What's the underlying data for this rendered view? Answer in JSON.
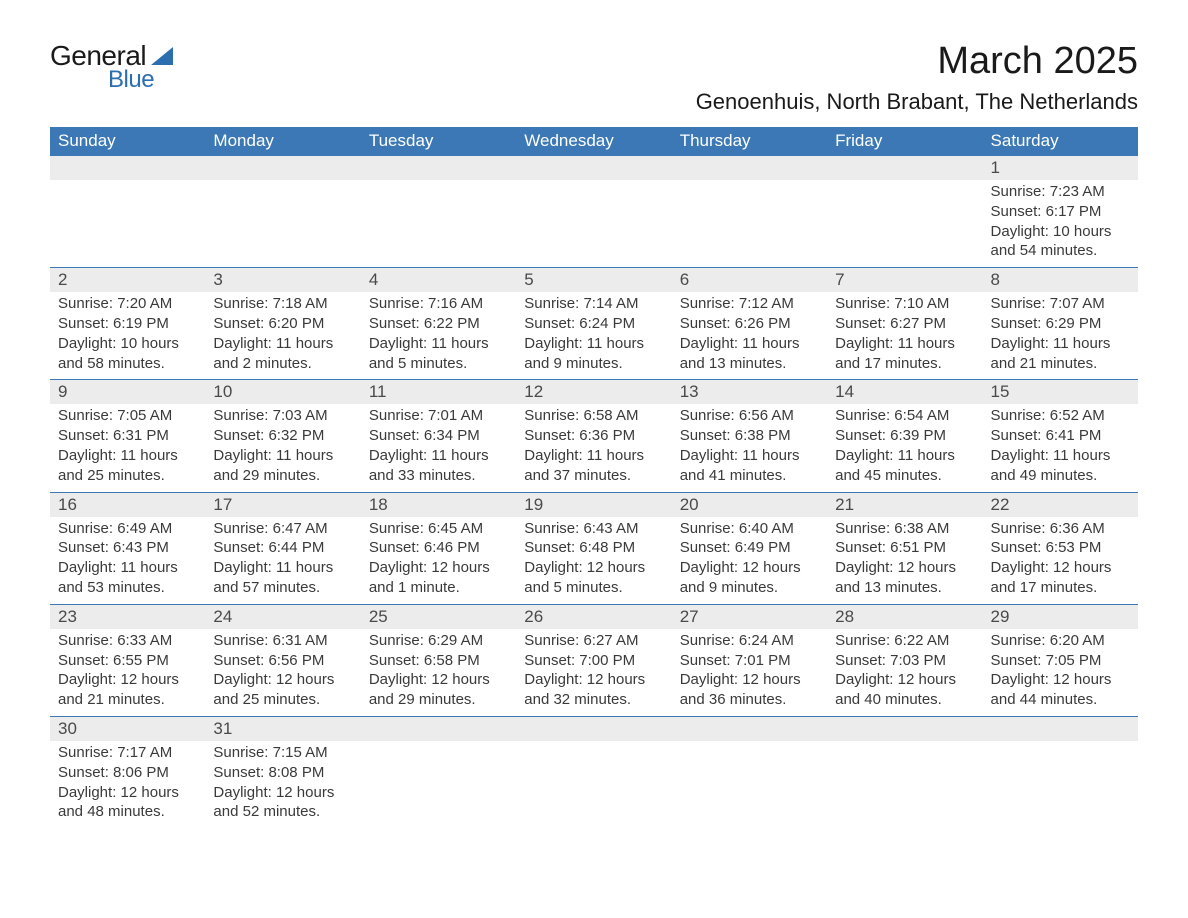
{
  "logo": {
    "text_general": "General",
    "text_blue": "Blue"
  },
  "header": {
    "title": "March 2025",
    "location": "Genoenhuis, North Brabant, The Netherlands"
  },
  "colors": {
    "header_bg": "#3b78b5",
    "header_text": "#ffffff",
    "daynum_bg": "#ececec",
    "row_border": "#3b78b5",
    "body_text": "#3a3a3a",
    "logo_blue": "#2c6fb0"
  },
  "day_headers": [
    "Sunday",
    "Monday",
    "Tuesday",
    "Wednesday",
    "Thursday",
    "Friday",
    "Saturday"
  ],
  "weeks": [
    [
      null,
      null,
      null,
      null,
      null,
      null,
      {
        "n": "1",
        "sunrise": "Sunrise: 7:23 AM",
        "sunset": "Sunset: 6:17 PM",
        "daylight": "Daylight: 10 hours and 54 minutes."
      }
    ],
    [
      {
        "n": "2",
        "sunrise": "Sunrise: 7:20 AM",
        "sunset": "Sunset: 6:19 PM",
        "daylight": "Daylight: 10 hours and 58 minutes."
      },
      {
        "n": "3",
        "sunrise": "Sunrise: 7:18 AM",
        "sunset": "Sunset: 6:20 PM",
        "daylight": "Daylight: 11 hours and 2 minutes."
      },
      {
        "n": "4",
        "sunrise": "Sunrise: 7:16 AM",
        "sunset": "Sunset: 6:22 PM",
        "daylight": "Daylight: 11 hours and 5 minutes."
      },
      {
        "n": "5",
        "sunrise": "Sunrise: 7:14 AM",
        "sunset": "Sunset: 6:24 PM",
        "daylight": "Daylight: 11 hours and 9 minutes."
      },
      {
        "n": "6",
        "sunrise": "Sunrise: 7:12 AM",
        "sunset": "Sunset: 6:26 PM",
        "daylight": "Daylight: 11 hours and 13 minutes."
      },
      {
        "n": "7",
        "sunrise": "Sunrise: 7:10 AM",
        "sunset": "Sunset: 6:27 PM",
        "daylight": "Daylight: 11 hours and 17 minutes."
      },
      {
        "n": "8",
        "sunrise": "Sunrise: 7:07 AM",
        "sunset": "Sunset: 6:29 PM",
        "daylight": "Daylight: 11 hours and 21 minutes."
      }
    ],
    [
      {
        "n": "9",
        "sunrise": "Sunrise: 7:05 AM",
        "sunset": "Sunset: 6:31 PM",
        "daylight": "Daylight: 11 hours and 25 minutes."
      },
      {
        "n": "10",
        "sunrise": "Sunrise: 7:03 AM",
        "sunset": "Sunset: 6:32 PM",
        "daylight": "Daylight: 11 hours and 29 minutes."
      },
      {
        "n": "11",
        "sunrise": "Sunrise: 7:01 AM",
        "sunset": "Sunset: 6:34 PM",
        "daylight": "Daylight: 11 hours and 33 minutes."
      },
      {
        "n": "12",
        "sunrise": "Sunrise: 6:58 AM",
        "sunset": "Sunset: 6:36 PM",
        "daylight": "Daylight: 11 hours and 37 minutes."
      },
      {
        "n": "13",
        "sunrise": "Sunrise: 6:56 AM",
        "sunset": "Sunset: 6:38 PM",
        "daylight": "Daylight: 11 hours and 41 minutes."
      },
      {
        "n": "14",
        "sunrise": "Sunrise: 6:54 AM",
        "sunset": "Sunset: 6:39 PM",
        "daylight": "Daylight: 11 hours and 45 minutes."
      },
      {
        "n": "15",
        "sunrise": "Sunrise: 6:52 AM",
        "sunset": "Sunset: 6:41 PM",
        "daylight": "Daylight: 11 hours and 49 minutes."
      }
    ],
    [
      {
        "n": "16",
        "sunrise": "Sunrise: 6:49 AM",
        "sunset": "Sunset: 6:43 PM",
        "daylight": "Daylight: 11 hours and 53 minutes."
      },
      {
        "n": "17",
        "sunrise": "Sunrise: 6:47 AM",
        "sunset": "Sunset: 6:44 PM",
        "daylight": "Daylight: 11 hours and 57 minutes."
      },
      {
        "n": "18",
        "sunrise": "Sunrise: 6:45 AM",
        "sunset": "Sunset: 6:46 PM",
        "daylight": "Daylight: 12 hours and 1 minute."
      },
      {
        "n": "19",
        "sunrise": "Sunrise: 6:43 AM",
        "sunset": "Sunset: 6:48 PM",
        "daylight": "Daylight: 12 hours and 5 minutes."
      },
      {
        "n": "20",
        "sunrise": "Sunrise: 6:40 AM",
        "sunset": "Sunset: 6:49 PM",
        "daylight": "Daylight: 12 hours and 9 minutes."
      },
      {
        "n": "21",
        "sunrise": "Sunrise: 6:38 AM",
        "sunset": "Sunset: 6:51 PM",
        "daylight": "Daylight: 12 hours and 13 minutes."
      },
      {
        "n": "22",
        "sunrise": "Sunrise: 6:36 AM",
        "sunset": "Sunset: 6:53 PM",
        "daylight": "Daylight: 12 hours and 17 minutes."
      }
    ],
    [
      {
        "n": "23",
        "sunrise": "Sunrise: 6:33 AM",
        "sunset": "Sunset: 6:55 PM",
        "daylight": "Daylight: 12 hours and 21 minutes."
      },
      {
        "n": "24",
        "sunrise": "Sunrise: 6:31 AM",
        "sunset": "Sunset: 6:56 PM",
        "daylight": "Daylight: 12 hours and 25 minutes."
      },
      {
        "n": "25",
        "sunrise": "Sunrise: 6:29 AM",
        "sunset": "Sunset: 6:58 PM",
        "daylight": "Daylight: 12 hours and 29 minutes."
      },
      {
        "n": "26",
        "sunrise": "Sunrise: 6:27 AM",
        "sunset": "Sunset: 7:00 PM",
        "daylight": "Daylight: 12 hours and 32 minutes."
      },
      {
        "n": "27",
        "sunrise": "Sunrise: 6:24 AM",
        "sunset": "Sunset: 7:01 PM",
        "daylight": "Daylight: 12 hours and 36 minutes."
      },
      {
        "n": "28",
        "sunrise": "Sunrise: 6:22 AM",
        "sunset": "Sunset: 7:03 PM",
        "daylight": "Daylight: 12 hours and 40 minutes."
      },
      {
        "n": "29",
        "sunrise": "Sunrise: 6:20 AM",
        "sunset": "Sunset: 7:05 PM",
        "daylight": "Daylight: 12 hours and 44 minutes."
      }
    ],
    [
      {
        "n": "30",
        "sunrise": "Sunrise: 7:17 AM",
        "sunset": "Sunset: 8:06 PM",
        "daylight": "Daylight: 12 hours and 48 minutes."
      },
      {
        "n": "31",
        "sunrise": "Sunrise: 7:15 AM",
        "sunset": "Sunset: 8:08 PM",
        "daylight": "Daylight: 12 hours and 52 minutes."
      },
      null,
      null,
      null,
      null,
      null
    ]
  ]
}
